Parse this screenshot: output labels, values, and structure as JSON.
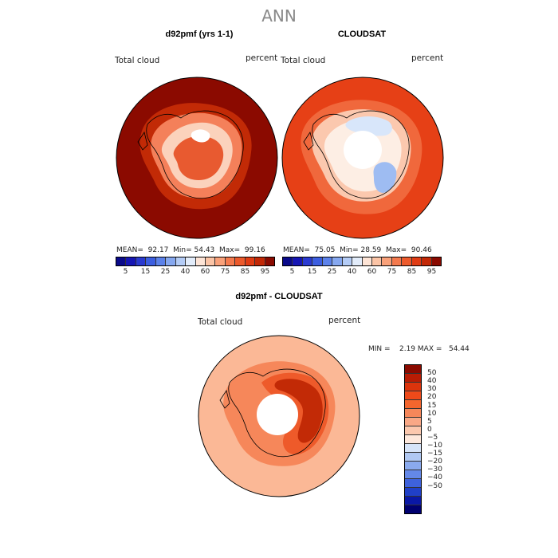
{
  "page_title": "ANN",
  "panels": [
    {
      "title": "d92pmf (yrs 1-1)",
      "var_label": "Total cloud",
      "units": "percent",
      "stats": {
        "mean": "MEAN=",
        "mean_val": "92.17",
        "min": "Min=",
        "min_val": "54.43",
        "max": "Max=",
        "max_val": "99.16"
      }
    },
    {
      "title": "CLOUDSAT",
      "var_label": "Total cloud",
      "units": "percent",
      "stats": {
        "mean": "MEAN=",
        "mean_val": "75.05",
        "min": "Min=",
        "min_val": "28.59",
        "max": "Max=",
        "max_val": "90.46"
      }
    },
    {
      "title": "d92pmf - CLOUDSAT",
      "var_label": "Total cloud",
      "units": "percent",
      "stats_text": "MIN =    2.19 MAX =   54.44"
    }
  ],
  "abs_colorbar": {
    "colors": [
      "#0a0a8a",
      "#1616b4",
      "#2a3ad0",
      "#3c5ee0",
      "#5c82ea",
      "#86a8f0",
      "#b4ccf6",
      "#e2ecfa",
      "#fde4d6",
      "#fbc4a6",
      "#f9a17a",
      "#f47a4e",
      "#ec5a2c",
      "#e03c14",
      "#c22806",
      "#8a0a00"
    ],
    "tick_labels": [
      "5",
      "15",
      "25",
      "40",
      "60",
      "75",
      "85",
      "95"
    ]
  },
  "diff_colorbar": {
    "colors": [
      "#8a0a00",
      "#b81c04",
      "#dc340c",
      "#ee4a1a",
      "#f4662e",
      "#f6875a",
      "#f9a886",
      "#fbc8ae",
      "#fde8dc",
      "#d6e4f8",
      "#b0c8f2",
      "#8aaaee",
      "#6488e8",
      "#3e62dc",
      "#2040c8",
      "#0a18a6",
      "#000070"
    ],
    "tick_labels": [
      "50",
      "40",
      "30",
      "20",
      "15",
      "10",
      "5",
      "0",
      "−5",
      "−10",
      "−15",
      "−20",
      "−30",
      "−40",
      "−50"
    ]
  },
  "map_colors": {
    "model": {
      "base": "#8b0a00",
      "ring1": "#c22a06",
      "ring2": "#f4805a",
      "ring3": "#fbd2bc",
      "ring4": "#ffffff",
      "inner": "#e85a30"
    },
    "obs": {
      "base": "#e64016",
      "ring1": "#f0683c",
      "ring2": "#fbc8ae",
      "ring3": "#fdeee4",
      "ring4": "#d8e6fa",
      "blue": "#9ebcf2",
      "pole": "#ffffff"
    },
    "diff": {
      "base": "#fbb896",
      "ring1": "#f6875a",
      "ring2": "#ee5a2a",
      "ring3": "#c22a06",
      "pole": "#ffffff"
    }
  }
}
